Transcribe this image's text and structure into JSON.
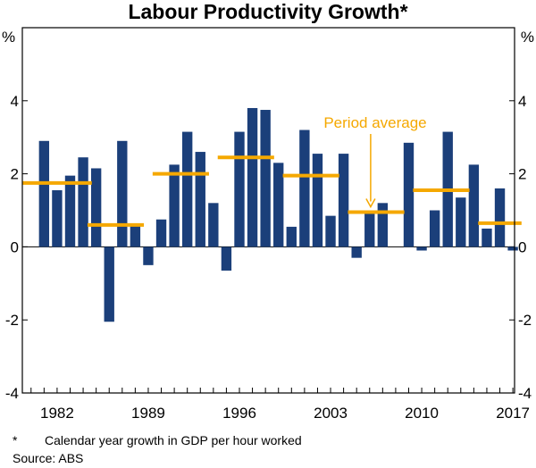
{
  "chart_data": {
    "type": "bar",
    "title": "Labour Productivity Growth*",
    "ylabel_left": "%",
    "ylabel_right": "%",
    "ylim": [
      -4,
      6
    ],
    "yticks": [
      -4,
      -2,
      0,
      2,
      4
    ],
    "ytick_labels": [
      "-4",
      "-2",
      "0",
      "2",
      "4"
    ],
    "years": [
      1980,
      1981,
      1982,
      1983,
      1984,
      1985,
      1986,
      1987,
      1988,
      1989,
      1990,
      1991,
      1992,
      1993,
      1994,
      1995,
      1996,
      1997,
      1998,
      1999,
      2000,
      2001,
      2002,
      2003,
      2004,
      2005,
      2006,
      2007,
      2008,
      2009,
      2010,
      2011,
      2012,
      2013,
      2014,
      2015,
      2016,
      2017
    ],
    "values": [
      0.0,
      2.9,
      1.55,
      1.95,
      2.45,
      2.15,
      -2.05,
      2.9,
      0.6,
      -0.5,
      0.75,
      2.25,
      3.15,
      2.6,
      1.2,
      -0.65,
      3.15,
      3.8,
      3.75,
      2.3,
      0.55,
      3.2,
      2.55,
      0.85,
      2.55,
      -0.3,
      0.95,
      1.2,
      0.0,
      2.85,
      -0.1,
      1.0,
      3.15,
      1.35,
      2.25,
      0.5,
      1.6,
      -0.1
    ],
    "xtick_labels": [
      "1982",
      "1989",
      "1996",
      "2003",
      "2010",
      "2017"
    ],
    "xtick_years": [
      1982,
      1989,
      1996,
      2003,
      2010,
      2017
    ],
    "period_averages": [
      {
        "start": 1980,
        "end": 1984,
        "value": 1.75
      },
      {
        "start": 1985,
        "end": 1988,
        "value": 0.6
      },
      {
        "start": 1990,
        "end": 1993,
        "value": 2.0
      },
      {
        "start": 1995,
        "end": 1998,
        "value": 2.45
      },
      {
        "start": 2000,
        "end": 2003,
        "value": 1.95
      },
      {
        "start": 2005,
        "end": 2008,
        "value": 0.95
      },
      {
        "start": 2010,
        "end": 2013,
        "value": 1.55
      },
      {
        "start": 2015,
        "end": 2017,
        "value": 0.65
      }
    ],
    "annotation": {
      "text": "Period average",
      "arrow_to_year": 2006
    },
    "colors": {
      "bar": "#1b3f7a",
      "average": "#f5a800",
      "axis": "#000000"
    }
  },
  "footnotes": {
    "asterisk": "*",
    "definition": "Calendar year growth in GDP per hour worked",
    "source": "Source:   ABS"
  }
}
